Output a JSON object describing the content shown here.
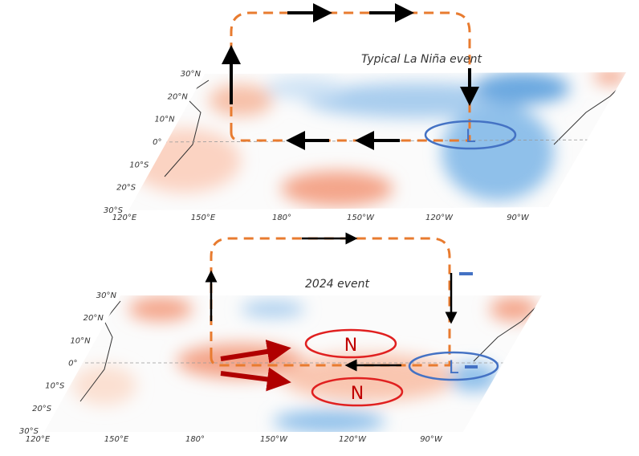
{
  "panels": [
    {
      "title": "Typical La Niña event",
      "lat_labels": [
        "30°N",
        "20°N",
        "10°N",
        "0°",
        "10°S",
        "20°S",
        "30°S"
      ],
      "lon_labels": [
        "120°E",
        "150°E",
        "180°",
        "150°W",
        "120°W",
        "90°W"
      ],
      "markers": [
        "L"
      ]
    },
    {
      "title": "2024 event",
      "lat_labels": [
        "30°N",
        "20°N",
        "10°N",
        "0°",
        "10°S",
        "20°S",
        "30°S"
      ],
      "lon_labels": [
        "120°E",
        "150°E",
        "180°",
        "150°W",
        "120°W",
        "90°W"
      ],
      "markers": [
        "N",
        "N",
        "L"
      ]
    }
  ]
}
